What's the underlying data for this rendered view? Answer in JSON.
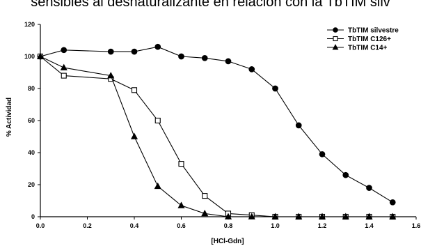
{
  "title": "sensibles al desnaturalizante en relación con la TbTIM silv",
  "chart_data": {
    "type": "line",
    "xlabel": "[HCl-Gdn]",
    "ylabel": "% Actividad",
    "xlim": [
      0.0,
      1.6
    ],
    "ylim": [
      0,
      120
    ],
    "xticks": [
      0.0,
      0.2,
      0.4,
      0.6,
      0.8,
      1.0,
      1.2,
      1.4,
      1.6
    ],
    "xtick_labels": [
      "0.0",
      "0.2",
      "0.4",
      "0.6",
      "0.8",
      "1.0",
      "1.2",
      "1.4",
      "1.6"
    ],
    "yticks": [
      0,
      20,
      40,
      60,
      80,
      100,
      120
    ],
    "ytick_labels": [
      "0",
      "20",
      "40",
      "60",
      "80",
      "100",
      "120"
    ],
    "grid": false,
    "legend_position": "top-right",
    "series": [
      {
        "name": "TbTIM silvestre",
        "marker": "filled-circle",
        "x": [
          0.0,
          0.1,
          0.3,
          0.4,
          0.5,
          0.6,
          0.7,
          0.8,
          0.9,
          1.0,
          1.1,
          1.2,
          1.3,
          1.4,
          1.5
        ],
        "y": [
          100,
          104,
          103,
          103,
          106,
          100,
          99,
          97,
          92,
          80,
          57,
          39,
          26,
          18,
          9
        ]
      },
      {
        "name": "TbTIM C126+",
        "marker": "open-square",
        "x": [
          0.0,
          0.1,
          0.3,
          0.4,
          0.5,
          0.6,
          0.7,
          0.8,
          0.9,
          1.0,
          1.1,
          1.2,
          1.3,
          1.4,
          1.5
        ],
        "y": [
          100,
          88,
          86,
          79,
          60,
          33,
          13,
          2,
          1,
          0,
          0,
          0,
          0,
          0,
          0
        ]
      },
      {
        "name": "TbTIM C14+",
        "marker": "filled-triangle",
        "x": [
          0.0,
          0.1,
          0.3,
          0.4,
          0.5,
          0.6,
          0.7,
          0.8,
          0.9,
          1.0,
          1.1,
          1.2,
          1.3,
          1.4,
          1.5
        ],
        "y": [
          100,
          93,
          88,
          50,
          19,
          7,
          2,
          0,
          0,
          0,
          0,
          0,
          0,
          0,
          0
        ]
      }
    ]
  }
}
